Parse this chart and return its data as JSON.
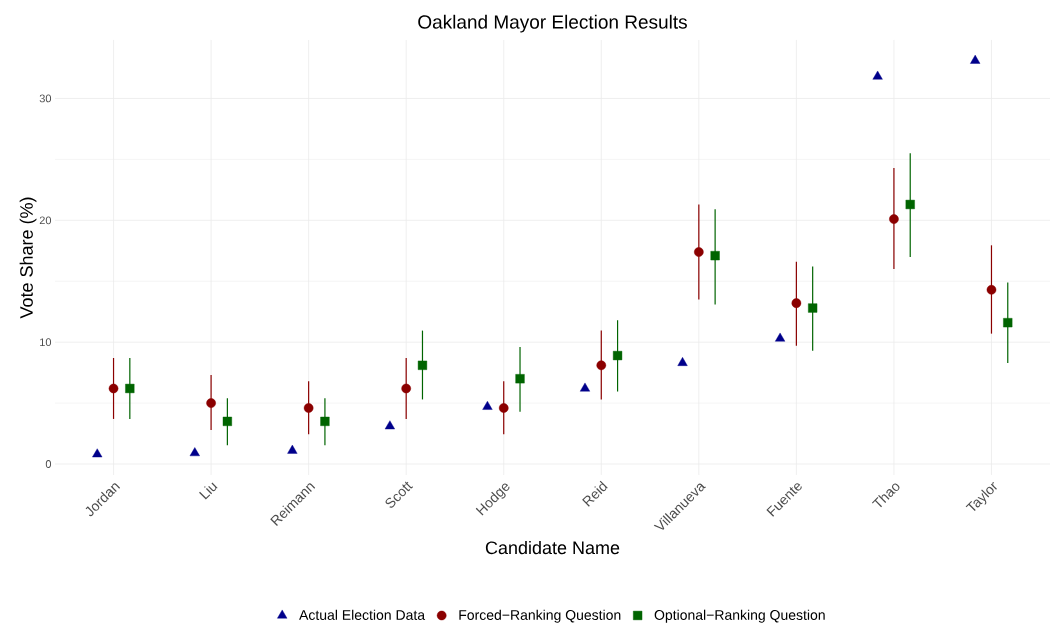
{
  "chart_data": {
    "type": "scatter",
    "title": "Oakland Mayor Election Results",
    "xlabel": "Candidate Name",
    "ylabel": "Vote Share (%)",
    "categories": [
      "Jordan",
      "Liu",
      "Reimann",
      "Scott",
      "Hodge",
      "Reid",
      "Villanueva",
      "Fuente",
      "Thao",
      "Taylor"
    ],
    "series": [
      {
        "name": "Actual Election Data",
        "color": "#00008b",
        "marker": "triangle",
        "values": [
          0.8,
          0.9,
          1.1,
          3.1,
          4.7,
          6.2,
          8.3,
          10.3,
          31.8,
          33.1
        ]
      },
      {
        "name": "Forced−Ranking Question",
        "color": "#8b0000",
        "marker": "circle",
        "values": [
          6.2,
          5.0,
          4.6,
          6.2,
          4.6,
          8.1,
          17.4,
          13.2,
          20.1,
          14.3
        ],
        "errors": [
          [
            3.7,
            8.7
          ],
          [
            2.8,
            7.3
          ],
          [
            2.45,
            6.8
          ],
          [
            3.7,
            8.7
          ],
          [
            2.45,
            6.8
          ],
          [
            5.3,
            10.95
          ],
          [
            13.5,
            21.3
          ],
          [
            9.7,
            16.6
          ],
          [
            16.0,
            24.3
          ],
          [
            10.7,
            17.95
          ]
        ]
      },
      {
        "name": "Optional−Ranking Question",
        "color": "#006400",
        "marker": "square",
        "values": [
          6.2,
          3.5,
          3.5,
          8.1,
          7.0,
          8.9,
          17.1,
          12.8,
          21.3,
          11.6
        ],
        "errors": [
          [
            3.7,
            8.7
          ],
          [
            1.55,
            5.4
          ],
          [
            1.55,
            5.4
          ],
          [
            5.3,
            10.95
          ],
          [
            4.3,
            9.6
          ],
          [
            5.95,
            11.8
          ],
          [
            13.1,
            20.9
          ],
          [
            9.3,
            16.2
          ],
          [
            17.0,
            25.5
          ],
          [
            8.3,
            14.9
          ]
        ]
      }
    ],
    "ylim": [
      -0.9,
      34.8
    ],
    "yticks": [
      0,
      10,
      20,
      30
    ],
    "grid": true,
    "legend": "bottom"
  }
}
